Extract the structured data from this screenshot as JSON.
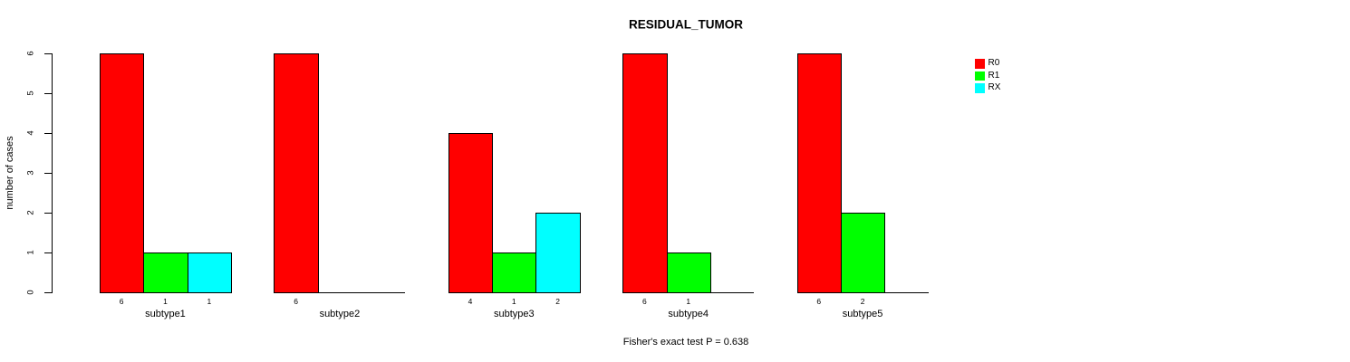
{
  "chart_data": {
    "type": "bar",
    "title": "RESIDUAL_TUMOR",
    "ylabel": "number of cases",
    "xlabel": "",
    "ylim": [
      0,
      6
    ],
    "yticks": [
      0,
      1,
      2,
      3,
      4,
      5,
      6
    ],
    "grid": false,
    "legend_position": "right-outside",
    "background_color": "#FFFFFF",
    "axis_color": "#000000",
    "text_color": "#000000",
    "categories": [
      "subtype1",
      "subtype2",
      "subtype3",
      "subtype4",
      "subtype5"
    ],
    "series": [
      {
        "name": "R0",
        "color": "#FF0000",
        "values": [
          6,
          6,
          4,
          6,
          6
        ]
      },
      {
        "name": "R1",
        "color": "#00FF00",
        "values": [
          1,
          0,
          1,
          1,
          2
        ]
      },
      {
        "name": "RX",
        "color": "#00FFFF",
        "values": [
          1,
          0,
          2,
          0,
          0
        ]
      }
    ],
    "bar_value_labels_shown_for_nonzero_only": true,
    "footnote": "Fisher's exact test P = 0.638"
  }
}
